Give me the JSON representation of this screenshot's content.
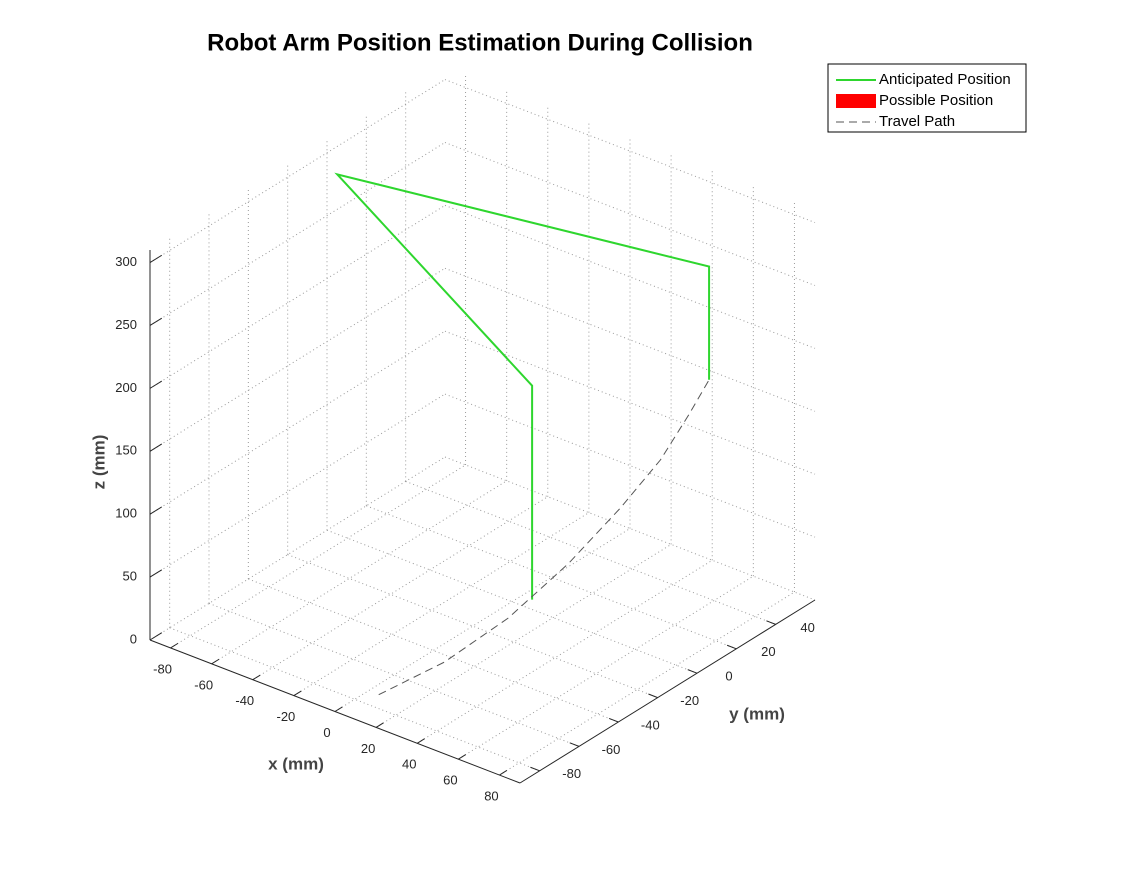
{
  "chart_data": {
    "type": "line3d",
    "title": "Robot Arm Position Estimation During Collision",
    "xlabel": "x (mm)",
    "ylabel": "y (mm)",
    "zlabel": "z (mm)",
    "xlim": [
      -90,
      90
    ],
    "ylim": [
      -90,
      60
    ],
    "zlim": [
      0,
      310
    ],
    "xticks": [
      -80,
      -60,
      -40,
      -20,
      0,
      20,
      40,
      60,
      80
    ],
    "yticks": [
      -80,
      -60,
      -40,
      -20,
      0,
      20,
      40
    ],
    "zticks": [
      0,
      50,
      100,
      150,
      200,
      250,
      300
    ],
    "grid": true,
    "legend": "top-right",
    "series": [
      {
        "name": "Anticipated Position",
        "color": "#2ed62e",
        "style": "solid",
        "x": [
          5,
          5,
          -85,
          71,
          71
        ],
        "y": [
          5,
          5,
          0,
          26,
          26
        ],
        "z": [
          0,
          170,
          286,
          286,
          196
        ]
      },
      {
        "name": "Possible Position",
        "color": "#ff0000",
        "style": "patch",
        "x": [],
        "y": [],
        "z": []
      },
      {
        "name": "Travel Path",
        "color": "#555555",
        "style": "dashed",
        "x": [
          5,
          15,
          25,
          35,
          45,
          55,
          63,
          71
        ],
        "y": [
          -73,
          -50,
          -28,
          -8,
          8,
          18,
          24,
          26
        ],
        "z": [
          0,
          10,
          30,
          60,
          95,
          130,
          165,
          196
        ]
      }
    ]
  }
}
